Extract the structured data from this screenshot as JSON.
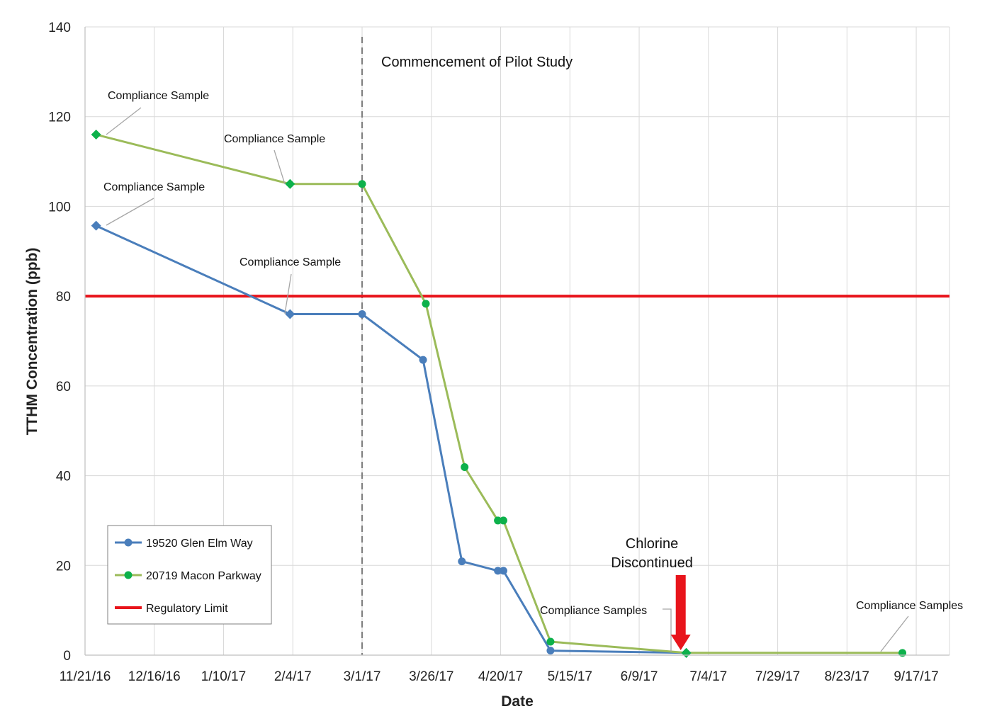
{
  "chart_data": {
    "type": "line",
    "xlabel": "Date",
    "ylabel": "TTHM Concentration (ppb)",
    "xlim": [
      "2016-11-21",
      "2017-09-29"
    ],
    "ylim": [
      0,
      140
    ],
    "yticks": [
      0,
      20,
      40,
      60,
      80,
      100,
      120,
      140
    ],
    "xticks": [
      "2016-11-21",
      "2016-12-16",
      "2017-01-10",
      "2017-02-04",
      "2017-03-01",
      "2017-03-26",
      "2017-04-20",
      "2017-05-15",
      "2017-06-09",
      "2017-07-04",
      "2017-07-29",
      "2017-08-23",
      "2017-09-17"
    ],
    "xtick_labels": [
      "11/21/16",
      "12/16/16",
      "1/10/17",
      "2/4/17",
      "3/1/17",
      "3/26/17",
      "4/20/17",
      "5/15/17",
      "6/9/17",
      "7/4/17",
      "7/29/17",
      "8/23/17",
      "9/17/17"
    ],
    "grid": true,
    "legend_position": "bottom-left",
    "series": [
      {
        "name": "19520 Glen Elm Way",
        "color": "#4a7ebb",
        "marker": "circle",
        "points": [
          {
            "x": "2016-11-25",
            "y": 95.7,
            "marker": "diamond"
          },
          {
            "x": "2017-02-03",
            "y": 76,
            "marker": "diamond"
          },
          {
            "x": "2017-03-01",
            "y": 76
          },
          {
            "x": "2017-03-23",
            "y": 65.8
          },
          {
            "x": "2017-04-06",
            "y": 20.9
          },
          {
            "x": "2017-04-19",
            "y": 18.8
          },
          {
            "x": "2017-04-21",
            "y": 18.8
          },
          {
            "x": "2017-05-08",
            "y": 1.0
          },
          {
            "x": "2017-06-26",
            "y": 0.5,
            "marker": "diamond"
          }
        ]
      },
      {
        "name": "20719 Macon Parkway",
        "color": "#9bbb59",
        "marker_color": "#0db14b",
        "marker": "circle",
        "points": [
          {
            "x": "2016-11-25",
            "y": 116,
            "marker": "diamond"
          },
          {
            "x": "2017-02-03",
            "y": 105,
            "marker": "diamond"
          },
          {
            "x": "2017-03-01",
            "y": 105
          },
          {
            "x": "2017-03-24",
            "y": 78.3
          },
          {
            "x": "2017-04-07",
            "y": 41.9
          },
          {
            "x": "2017-04-19",
            "y": 30
          },
          {
            "x": "2017-04-21",
            "y": 30
          },
          {
            "x": "2017-05-08",
            "y": 3.0
          },
          {
            "x": "2017-06-26",
            "y": 0.5,
            "marker": "diamond"
          },
          {
            "x": "2017-09-12",
            "y": 0.5
          }
        ]
      },
      {
        "name": "Regulatory Limit",
        "color": "#e8141b",
        "type": "hline",
        "y": 80
      }
    ],
    "annotations": [
      {
        "id": "pilot",
        "text": "Commencement of Pilot Study"
      },
      {
        "id": "cs-green-1",
        "text": "Compliance Sample"
      },
      {
        "id": "cs-blue-1",
        "text": "Compliance Sample"
      },
      {
        "id": "cs-green-2",
        "text": "Compliance Sample"
      },
      {
        "id": "cs-blue-2",
        "text": "Compliance Sample"
      },
      {
        "id": "cs-june",
        "text": "Compliance Samples"
      },
      {
        "id": "cs-sept",
        "text": "Compliance Samples"
      },
      {
        "id": "chlorine-1",
        "text": "Chlorine"
      },
      {
        "id": "chlorine-2",
        "text": "Discontinued"
      }
    ],
    "vline": {
      "x": "2017-03-01",
      "style": "dashed",
      "color": "#808080"
    },
    "arrow": {
      "x": "2017-06-24",
      "color": "#e8141b"
    }
  }
}
